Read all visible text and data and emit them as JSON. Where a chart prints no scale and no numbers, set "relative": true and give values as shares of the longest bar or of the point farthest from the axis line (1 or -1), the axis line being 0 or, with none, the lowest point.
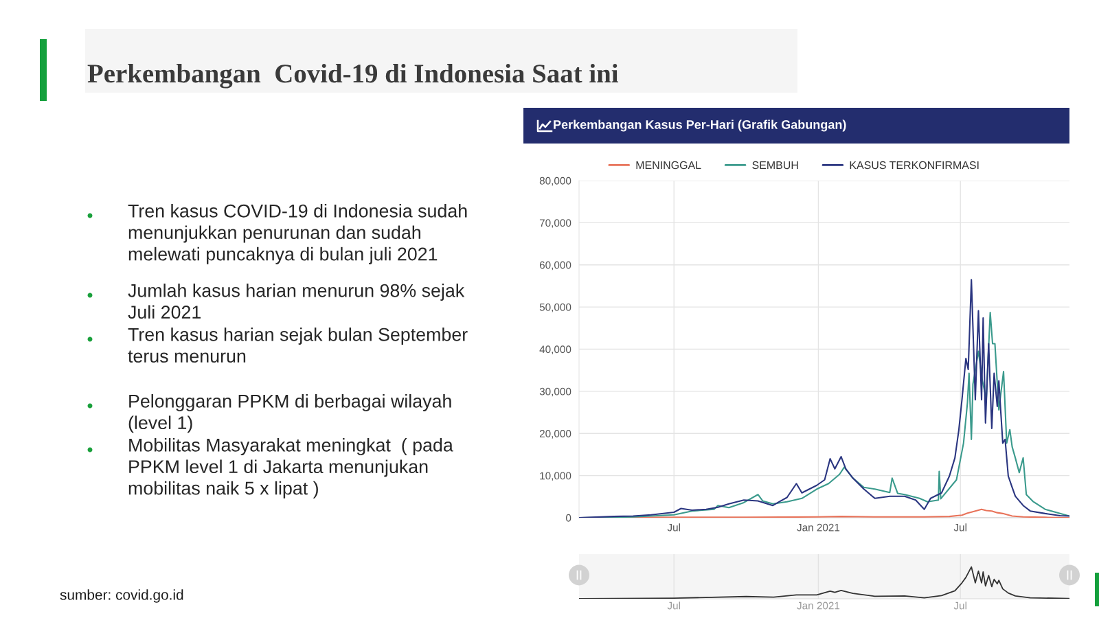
{
  "chart_data": [
    {
      "type": "line",
      "title": "Perkembangan  Covid-19 di Indonesia Saat ini",
      "subtitle": "Perkembangan Kasus Per-Hari (Grafik Gabungan)",
      "annotations": [
        "Tren kasus COVID-19 di Indonesia sudah menunjukkan penurunan dan sudah melewati puncaknya di bulan juli 2021",
        "Jumlah kasus harian menurun 98% sejak Juli 2021",
        "Tren kasus harian sejak bulan September terus menurun",
        "Pelonggaran PPKM di berbagai wilayah (level 1)",
        "Mobilitas Masyarakat meningkat  ( pada PPKM level 1 di Jakarta menunjukan mobilitas naik 5 x lipat )",
        "sumber: covid.go.id"
      ],
      "xlim": [
        "2020-03-02",
        "2021-11-17"
      ],
      "xticks": [
        {
          "value": "2020-07-01",
          "label": "Jul"
        },
        {
          "value": "2021-01-01",
          "label": "Jan 2021"
        },
        {
          "value": "2021-07-01",
          "label": "Jul"
        }
      ],
      "ylim": [
        0,
        80000
      ],
      "yticks": [
        0,
        {
          "value": 10000,
          "label": "10,000"
        },
        {
          "value": 20000,
          "label": "20,000"
        },
        {
          "value": 30000,
          "label": "30,000"
        },
        {
          "value": 40000,
          "label": "40,000"
        },
        {
          "value": 50000,
          "label": "50,000"
        },
        {
          "value": 60000,
          "label": "60,000"
        },
        {
          "value": 70000,
          "label": "70,000"
        },
        {
          "value": 80000,
          "label": "80,000"
        }
      ],
      "grid": true,
      "legend": "top",
      "series": [
        {
          "name": "MENINGGAL",
          "color": "#e8735a",
          "x": [
            "2020-03-02",
            "2020-07-01",
            "2020-10-01",
            "2021-01-01",
            "2021-01-30",
            "2021-03-14",
            "2021-05-16",
            "2021-06-17",
            "2021-07-03",
            "2021-07-10",
            "2021-07-16",
            "2021-07-24",
            "2021-07-28",
            "2021-08-03",
            "2021-08-10",
            "2021-08-17",
            "2021-08-24",
            "2021-09-05",
            "2021-09-19",
            "2021-10-17",
            "2021-11-17"
          ],
          "values": [
            0,
            100,
            100,
            200,
            300,
            200,
            200,
            300,
            600,
            1100,
            1400,
            1800,
            2000,
            1700,
            1600,
            1200,
            1000,
            400,
            200,
            100,
            0
          ]
        },
        {
          "name": "SEMBUH",
          "color": "#3a9a8c",
          "x": [
            "2020-03-02",
            "2020-05-10",
            "2020-07-01",
            "2020-07-24",
            "2020-08-21",
            "2020-08-26",
            "2020-09-09",
            "2020-09-28",
            "2020-10-16",
            "2020-10-22",
            "2020-11-04",
            "2020-11-22",
            "2020-12-11",
            "2020-12-30",
            "2021-01-14",
            "2021-01-28",
            "2021-02-03",
            "2021-02-14",
            "2021-02-28",
            "2021-03-14",
            "2021-04-02",
            "2021-04-05",
            "2021-04-12",
            "2021-04-21",
            "2021-05-10",
            "2021-05-20",
            "2021-06-03",
            "2021-06-04",
            "2021-06-06",
            "2021-06-26",
            "2021-07-05",
            "2021-07-10",
            "2021-07-12",
            "2021-07-15",
            "2021-07-17",
            "2021-07-24",
            "2021-07-29",
            "2021-08-03",
            "2021-08-08",
            "2021-08-11",
            "2021-08-14",
            "2021-08-19",
            "2021-08-25",
            "2021-08-29",
            "2021-09-02",
            "2021-09-05",
            "2021-09-09",
            "2021-09-14",
            "2021-09-19",
            "2021-09-23",
            "2021-10-02",
            "2021-10-17",
            "2021-11-05",
            "2021-11-17"
          ],
          "values": [
            0,
            200,
            700,
            1600,
            2000,
            2900,
            2400,
            3600,
            5500,
            4000,
            3300,
            3800,
            4600,
            6800,
            8100,
            10300,
            12000,
            9400,
            7200,
            6800,
            6000,
            9400,
            5800,
            5500,
            4600,
            3800,
            4200,
            11000,
            4500,
            9000,
            17700,
            27300,
            34300,
            18600,
            31700,
            39500,
            32500,
            28200,
            48700,
            41300,
            41300,
            25600,
            34700,
            17700,
            20900,
            16800,
            14200,
            10700,
            14200,
            5500,
            3800,
            2000,
            1000,
            400
          ]
        },
        {
          "name": "KASUS TERKONFIRMASI",
          "color": "#2a3580",
          "x": [
            "2020-03-02",
            "2020-04-15",
            "2020-05-10",
            "2020-06-02",
            "2020-07-01",
            "2020-07-10",
            "2020-07-24",
            "2020-08-11",
            "2020-08-26",
            "2020-09-09",
            "2020-09-28",
            "2020-10-16",
            "2020-11-04",
            "2020-11-13",
            "2020-11-22",
            "2020-12-04",
            "2020-12-11",
            "2020-12-30",
            "2021-01-09",
            "2021-01-16",
            "2021-01-22",
            "2021-01-30",
            "2021-02-05",
            "2021-02-14",
            "2021-02-28",
            "2021-03-14",
            "2021-04-02",
            "2021-04-21",
            "2021-05-05",
            "2021-05-16",
            "2021-05-24",
            "2021-06-07",
            "2021-06-17",
            "2021-06-24",
            "2021-06-29",
            "2021-07-03",
            "2021-07-08",
            "2021-07-11",
            "2021-07-15",
            "2021-07-20",
            "2021-07-24",
            "2021-07-28",
            "2021-07-30",
            "2021-08-02",
            "2021-08-06",
            "2021-08-10",
            "2021-08-13",
            "2021-08-17",
            "2021-08-19",
            "2021-08-24",
            "2021-08-27",
            "2021-08-31",
            "2021-09-05",
            "2021-09-09",
            "2021-09-19",
            "2021-09-28",
            "2021-10-17",
            "2021-11-05",
            "2021-11-17"
          ],
          "values": [
            0,
            300,
            400,
            700,
            1300,
            2200,
            1800,
            2000,
            2500,
            3300,
            4200,
            4000,
            2900,
            3900,
            4800,
            8100,
            5900,
            7700,
            9000,
            14000,
            11600,
            14500,
            11600,
            9400,
            6800,
            4600,
            5100,
            5100,
            4200,
            2000,
            4600,
            5900,
            9900,
            14200,
            20800,
            28000,
            37800,
            35200,
            56500,
            28000,
            49100,
            28000,
            47400,
            22500,
            41300,
            21200,
            34300,
            26400,
            32500,
            17700,
            18600,
            9900,
            7200,
            5100,
            2900,
            1600,
            1000,
            500,
            400
          ]
        }
      ]
    },
    {
      "type": "line",
      "relative": true,
      "xlim": [
        "2020-03-02",
        "2021-11-17"
      ],
      "xticks": [
        {
          "value": "2020-07-01",
          "label": "Jul"
        },
        {
          "value": "2021-01-01",
          "label": "Jan 2021"
        },
        {
          "value": "2021-07-01",
          "label": "Jul"
        }
      ],
      "grid": "x",
      "series": [
        {
          "color": "#333333",
          "x": [
            "2020-03-02",
            "2020-07-01",
            "2020-10-01",
            "2020-11-05",
            "2020-12-04",
            "2020-12-30",
            "2021-01-16",
            "2021-01-22",
            "2021-01-30",
            "2021-02-14",
            "2021-03-14",
            "2021-04-21",
            "2021-05-16",
            "2021-06-07",
            "2021-06-24",
            "2021-07-03",
            "2021-07-08",
            "2021-07-15",
            "2021-07-20",
            "2021-07-24",
            "2021-07-28",
            "2021-07-30",
            "2021-08-02",
            "2021-08-06",
            "2021-08-10",
            "2021-08-13",
            "2021-08-17",
            "2021-08-19",
            "2021-08-24",
            "2021-08-31",
            "2021-09-09",
            "2021-09-28",
            "2021-11-17"
          ],
          "values": [
            0,
            0.02,
            0.07,
            0.05,
            0.12,
            0.12,
            0.24,
            0.2,
            0.26,
            0.17,
            0.08,
            0.09,
            0.03,
            0.1,
            0.25,
            0.5,
            0.67,
            1,
            0.5,
            0.87,
            0.5,
            0.84,
            0.4,
            0.73,
            0.38,
            0.61,
            0.47,
            0.58,
            0.31,
            0.18,
            0.09,
            0.03,
            0.01
          ]
        }
      ]
    }
  ]
}
